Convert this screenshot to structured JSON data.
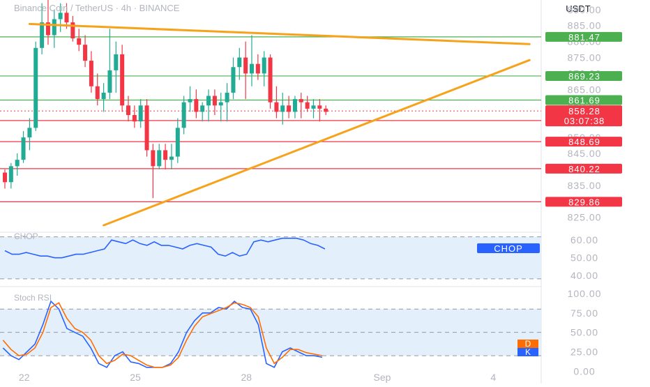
{
  "header": {
    "title": "Binance Coin / TetherUS · 4h · BINANCE",
    "currency": "USDT"
  },
  "colors": {
    "up": "#22ab94",
    "down": "#f23645",
    "support_line": "#f23645",
    "resistance_line": "#4caf50",
    "trendline": "#f7a21b",
    "chop_line": "#2962ff",
    "stoch_k": "#2962ff",
    "stoch_d": "#ff6d00",
    "band_fill": "#e3f0fc",
    "axis_text": "#b2b5be",
    "last_price_badge": "#f23645"
  },
  "chart_data": [
    {
      "type": "candlestick",
      "title": "Binance Coin / TetherUS · 4h · BINANCE",
      "currency": "USDT",
      "y_range": [
        821,
        893
      ],
      "y_ticks": [
        "890.00",
        "885.00",
        "880.00",
        "875.00",
        "870.00",
        "865.00",
        "860.00",
        "855.00",
        "850.00",
        "845.00",
        "840.00",
        "835.00",
        "830.00",
        "825.00"
      ],
      "x_ticks": [
        {
          "label": "22",
          "bar": 2
        },
        {
          "label": "25",
          "bar": 20
        },
        {
          "label": "28",
          "bar": 38
        },
        {
          "label": "Sep",
          "bar": 60
        },
        {
          "label": "4",
          "bar": 78
        }
      ],
      "bar_count_visible": 86,
      "candles": [
        [
          839,
          840,
          834,
          836
        ],
        [
          836,
          842,
          834,
          841
        ],
        [
          841,
          845,
          838,
          843
        ],
        [
          843,
          852,
          842,
          850
        ],
        [
          850,
          856,
          846,
          853
        ],
        [
          853,
          880,
          852,
          878
        ],
        [
          878,
          892,
          876,
          886
        ],
        [
          886,
          893,
          879,
          882
        ],
        [
          882,
          890,
          878,
          887
        ],
        [
          887,
          892,
          883,
          889
        ],
        [
          889,
          892,
          884,
          886
        ],
        [
          886,
          888,
          880,
          881
        ],
        [
          881,
          884,
          877,
          879
        ],
        [
          879,
          882,
          872,
          874
        ],
        [
          874,
          877,
          864,
          866
        ],
        [
          866,
          870,
          860,
          862
        ],
        [
          862,
          867,
          858,
          864
        ],
        [
          864,
          884,
          862,
          871
        ],
        [
          871,
          880,
          864,
          876
        ],
        [
          876,
          879,
          858,
          860
        ],
        [
          860,
          863,
          855,
          857
        ],
        [
          857,
          860,
          853,
          855
        ],
        [
          855,
          862,
          853,
          860
        ],
        [
          860,
          862,
          844,
          846
        ],
        [
          846,
          848,
          831,
          841
        ],
        [
          841,
          848,
          840,
          846
        ],
        [
          846,
          848,
          840,
          843
        ],
        [
          843,
          848,
          840,
          844
        ],
        [
          844,
          856,
          842,
          853
        ],
        [
          853,
          863,
          851,
          861
        ],
        [
          861,
          866,
          858,
          862
        ],
        [
          862,
          865,
          856,
          858
        ],
        [
          858,
          861,
          855,
          860
        ],
        [
          860,
          865,
          855,
          863
        ],
        [
          863,
          865,
          857,
          860
        ],
        [
          860,
          864,
          855,
          861
        ],
        [
          861,
          867,
          855,
          864
        ],
        [
          864,
          875,
          862,
          872
        ],
        [
          872,
          878,
          868,
          875
        ],
        [
          875,
          880,
          862,
          870
        ],
        [
          870,
          882,
          866,
          873
        ],
        [
          873,
          876,
          868,
          870
        ],
        [
          870,
          877,
          866,
          875
        ],
        [
          875,
          876,
          859,
          861
        ],
        [
          861,
          866,
          856,
          858
        ],
        [
          858,
          864,
          854,
          860
        ],
        [
          860,
          863,
          856,
          858
        ],
        [
          858,
          863,
          856,
          862
        ],
        [
          862,
          864,
          856,
          861
        ],
        [
          861,
          863,
          858,
          859
        ],
        [
          859,
          862,
          856,
          860
        ],
        [
          860,
          862,
          855,
          859
        ],
        [
          859,
          860,
          857,
          858
        ]
      ],
      "horizontal_levels": [
        {
          "value": 881.47,
          "label": "881.47",
          "kind": "resistance"
        },
        {
          "value": 869.23,
          "label": "869.23",
          "kind": "resistance"
        },
        {
          "value": 861.69,
          "label": "861.69",
          "kind": "resistance"
        },
        {
          "value": 855.29,
          "label": "855.29",
          "kind": "support"
        },
        {
          "value": 848.69,
          "label": "848.69",
          "kind": "support"
        },
        {
          "value": 840.22,
          "label": "840.22",
          "kind": "support"
        },
        {
          "value": 829.86,
          "label": "829.86",
          "kind": "support"
        }
      ],
      "last_price": {
        "value": 858.28,
        "label": "858.28",
        "countdown": "03:07:38"
      },
      "trendlines": [
        {
          "from": {
            "bar": 4,
            "value": 885.5
          },
          "to": {
            "bar": 85,
            "value": 879.2
          }
        },
        {
          "from": {
            "bar": 16,
            "value": 822.5
          },
          "to": {
            "bar": 85,
            "value": 874.2
          }
        }
      ]
    },
    {
      "type": "line",
      "name": "CHOP",
      "y_range": [
        35,
        64
      ],
      "y_ticks": [
        "60.00",
        "50.00",
        "40.00"
      ],
      "band": [
        38.2,
        61.8
      ],
      "label": "CHOP",
      "values": [
        54,
        52,
        52,
        53,
        52,
        51,
        51,
        50,
        50,
        51,
        52,
        52,
        53,
        54,
        55,
        60,
        59,
        58,
        60,
        58,
        57,
        59,
        57,
        57,
        56,
        55,
        57,
        58,
        57,
        56,
        52,
        51,
        53,
        51,
        52,
        59,
        60,
        59,
        60,
        61,
        61,
        61,
        60,
        58,
        57,
        55
      ]
    },
    {
      "type": "line",
      "name": "Stoch RSI",
      "y_range": [
        -5,
        108
      ],
      "y_ticks": [
        "100.00",
        "75.00",
        "50.00",
        "25.00",
        "0.00"
      ],
      "band": [
        20,
        80
      ],
      "legend": [
        "D",
        "K"
      ],
      "series": [
        {
          "name": "K",
          "values": [
            30,
            20,
            15,
            25,
            35,
            60,
            90,
            80,
            55,
            50,
            45,
            30,
            10,
            5,
            20,
            25,
            12,
            10,
            5,
            5,
            5,
            10,
            25,
            50,
            65,
            75,
            75,
            82,
            80,
            90,
            82,
            80,
            60,
            10,
            5,
            25,
            30,
            25,
            20,
            20,
            18
          ]
        },
        {
          "name": "D",
          "values": [
            40,
            28,
            20,
            22,
            30,
            50,
            82,
            88,
            68,
            55,
            50,
            40,
            20,
            10,
            14,
            22,
            20,
            14,
            8,
            5,
            5,
            8,
            18,
            40,
            58,
            70,
            74,
            78,
            82,
            88,
            86,
            82,
            70,
            30,
            10,
            18,
            28,
            28,
            24,
            22,
            20
          ]
        }
      ]
    }
  ]
}
